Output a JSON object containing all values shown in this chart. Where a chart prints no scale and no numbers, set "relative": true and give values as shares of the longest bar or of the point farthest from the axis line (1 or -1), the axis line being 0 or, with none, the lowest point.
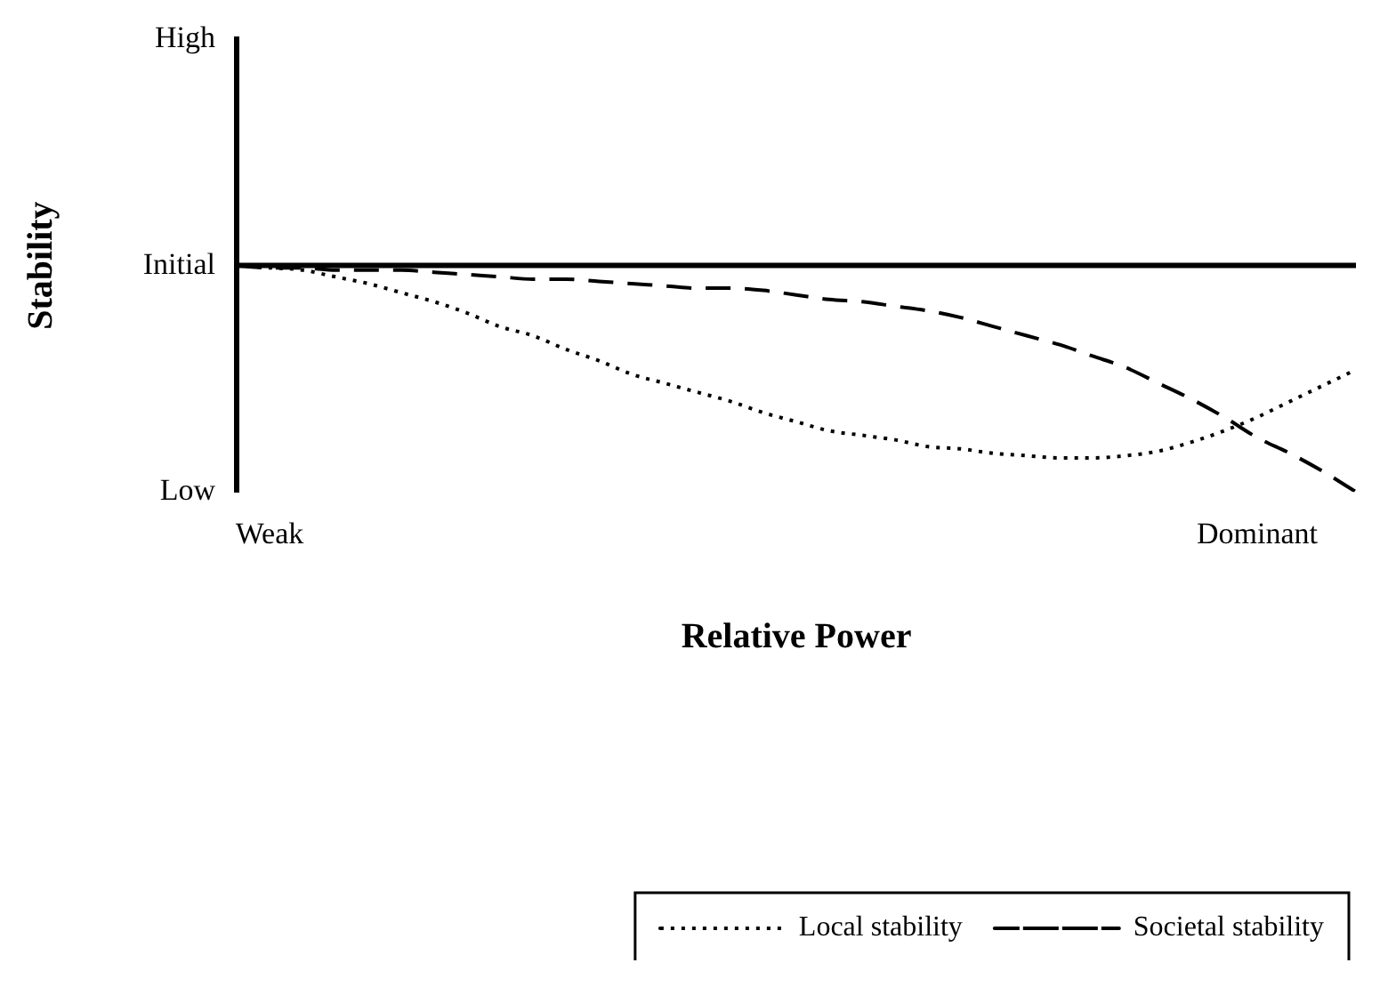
{
  "chart_data": {
    "type": "line",
    "relative": true,
    "xlabel": "Relative Power",
    "ylabel": "Stability",
    "categories": [
      null,
      "Weak",
      null,
      null,
      null,
      null,
      null,
      null,
      null,
      null,
      null,
      null,
      null,
      null,
      null,
      null,
      null,
      null,
      null,
      null,
      null,
      null,
      null,
      null,
      null,
      null,
      null,
      null,
      null,
      null,
      null,
      "Dominant",
      null,
      null,
      null
    ],
    "ref_lines": [
      {
        "axis": "y",
        "value": 1,
        "label": "Initial",
        "color": "#000000",
        "line_style": "solid"
      }
    ],
    "annotations": [
      "High",
      "Low"
    ],
    "series": [
      {
        "name": "Local stability",
        "color": "#000000",
        "line_style": "dotted",
        "values": [
          1.0,
          0.99,
          0.98,
          0.95,
          0.92,
          0.88,
          0.84,
          0.79,
          0.73,
          0.69,
          0.63,
          0.58,
          0.52,
          0.48,
          0.44,
          0.4,
          0.35,
          0.31,
          0.27,
          0.25,
          0.23,
          0.2,
          0.19,
          0.17,
          0.16,
          0.15,
          0.15,
          0.16,
          0.18,
          0.22,
          0.27,
          0.33,
          0.4,
          0.47,
          0.54
        ]
      },
      {
        "name": "Societal stability",
        "color": "#000000",
        "line_style": "dashed",
        "values": [
          1.0,
          0.99,
          0.99,
          0.98,
          0.98,
          0.98,
          0.97,
          0.96,
          0.95,
          0.94,
          0.94,
          0.93,
          0.92,
          0.91,
          0.9,
          0.9,
          0.89,
          0.87,
          0.85,
          0.84,
          0.82,
          0.8,
          0.77,
          0.73,
          0.69,
          0.65,
          0.6,
          0.55,
          0.48,
          0.41,
          0.33,
          0.24,
          0.17,
          0.09,
          0.0
        ]
      }
    ],
    "grid": false,
    "marker": "none",
    "legend": "bottom right"
  }
}
